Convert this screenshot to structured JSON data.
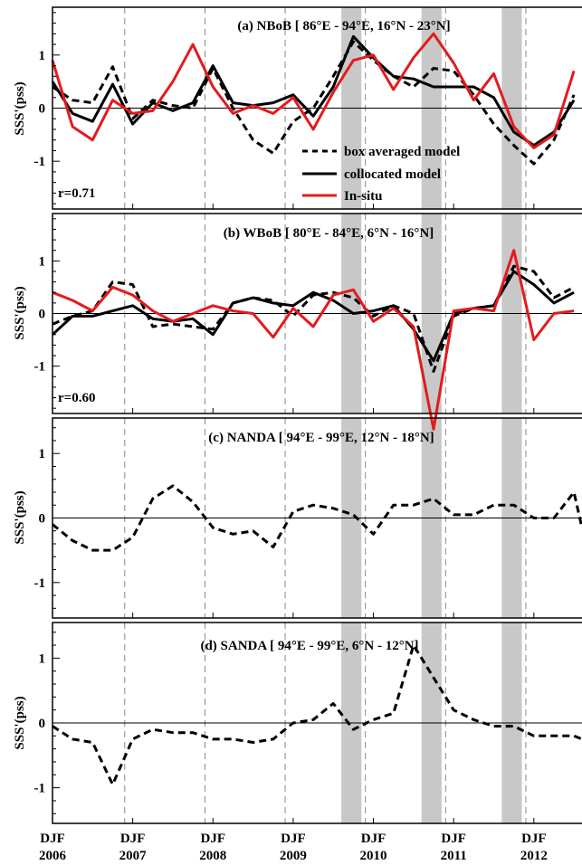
{
  "chart_data": [
    {
      "type": "line",
      "title": "(a) NBoB [ 86°E - 94°E, 16°N - 23°N]",
      "ylabel": "SSS'(pss)",
      "ylim": [
        -1.9,
        1.9
      ],
      "yticks": [
        1,
        0,
        -1
      ],
      "ytick_labels": [
        "1",
        "0",
        "-1"
      ],
      "correlation_label": "r=0.71",
      "legend": [
        "box averaged model",
        "collocated model",
        "In-situ"
      ],
      "legend_position": "center-right",
      "series": [
        {
          "name": "box averaged model",
          "style": "dashed",
          "color": "#000000",
          "x": [
            2006.0,
            2006.25,
            2006.5,
            2006.75,
            2007.0,
            2007.25,
            2007.5,
            2007.75,
            2008.0,
            2008.25,
            2008.5,
            2008.75,
            2009.0,
            2009.25,
            2009.5,
            2009.75,
            2010.0,
            2010.25,
            2010.5,
            2010.75,
            2011.0,
            2011.25,
            2011.5,
            2011.75,
            2012.0,
            2012.25,
            2012.5
          ],
          "y": [
            0.4,
            0.15,
            0.1,
            0.78,
            -0.2,
            0.15,
            0.05,
            0.0,
            0.75,
            0.0,
            -0.6,
            -0.85,
            -0.25,
            0.0,
            0.6,
            1.25,
            0.9,
            0.6,
            0.4,
            0.75,
            0.7,
            0.25,
            -0.3,
            -0.7,
            -1.05,
            -0.6,
            0.25
          ]
        },
        {
          "name": "collocated model",
          "style": "solid",
          "color": "#000000",
          "x": [
            2006.0,
            2006.25,
            2006.5,
            2006.75,
            2007.0,
            2007.25,
            2007.5,
            2007.75,
            2008.0,
            2008.25,
            2008.5,
            2008.75,
            2009.0,
            2009.25,
            2009.5,
            2009.75,
            2010.0,
            2010.25,
            2010.5,
            2010.75,
            2011.0,
            2011.25,
            2011.5,
            2011.75,
            2012.0,
            2012.25,
            2012.5
          ],
          "y": [
            0.5,
            -0.1,
            -0.25,
            0.45,
            -0.3,
            0.1,
            -0.05,
            0.1,
            0.8,
            0.1,
            0.05,
            0.1,
            0.25,
            -0.15,
            0.4,
            1.35,
            0.95,
            0.6,
            0.55,
            0.4,
            0.4,
            0.4,
            0.2,
            -0.45,
            -0.7,
            -0.45,
            0.15
          ]
        },
        {
          "name": "In-situ",
          "style": "solid",
          "color": "#e41a1c",
          "x": [
            2006.0,
            2006.25,
            2006.5,
            2006.75,
            2007.0,
            2007.25,
            2007.5,
            2007.75,
            2008.0,
            2008.25,
            2008.5,
            2008.75,
            2009.0,
            2009.25,
            2009.5,
            2009.75,
            2010.0,
            2010.25,
            2010.5,
            2010.75,
            2011.0,
            2011.25,
            2011.5,
            2011.75,
            2012.0,
            2012.25,
            2012.5
          ],
          "y": [
            0.9,
            -0.35,
            -0.6,
            0.15,
            -0.1,
            -0.05,
            0.5,
            1.2,
            0.4,
            -0.1,
            0.05,
            -0.1,
            0.2,
            -0.4,
            0.3,
            0.9,
            1.0,
            0.35,
            0.95,
            1.4,
            0.85,
            0.15,
            0.65,
            -0.35,
            -0.75,
            -0.5,
            0.7
          ]
        }
      ]
    },
    {
      "type": "line",
      "title": "(b) WBoB [ 80°E - 84°E, 6°N - 16°N]",
      "ylabel": "SSS'(pss)",
      "ylim": [
        -1.9,
        1.9
      ],
      "yticks": [
        1,
        0,
        -1
      ],
      "ytick_labels": [
        "1",
        "0",
        "-1"
      ],
      "correlation_label": "r=0.60",
      "series": [
        {
          "name": "box averaged model",
          "style": "dashed",
          "color": "#000000",
          "x": [
            2006.0,
            2006.25,
            2006.5,
            2006.75,
            2007.0,
            2007.25,
            2007.5,
            2007.75,
            2008.0,
            2008.25,
            2008.5,
            2008.75,
            2009.0,
            2009.25,
            2009.5,
            2009.75,
            2010.0,
            2010.25,
            2010.5,
            2010.75,
            2011.0,
            2011.25,
            2011.5,
            2011.75,
            2012.0,
            2012.25,
            2012.5
          ],
          "y": [
            -0.2,
            -0.05,
            0.05,
            0.6,
            0.55,
            -0.25,
            -0.2,
            -0.25,
            -0.3,
            0.2,
            0.3,
            0.25,
            -0.05,
            0.35,
            0.4,
            0.3,
            -0.05,
            0.15,
            0.0,
            -1.1,
            -0.05,
            0.1,
            0.15,
            0.9,
            0.8,
            0.3,
            0.5
          ]
        },
        {
          "name": "collocated model",
          "style": "solid",
          "color": "#000000",
          "x": [
            2006.0,
            2006.25,
            2006.5,
            2006.75,
            2007.0,
            2007.25,
            2007.5,
            2007.75,
            2008.0,
            2008.25,
            2008.5,
            2008.75,
            2009.0,
            2009.25,
            2009.5,
            2009.75,
            2010.0,
            2010.25,
            2010.5,
            2010.75,
            2011.0,
            2011.25,
            2011.5,
            2011.75,
            2012.0,
            2012.25,
            2012.5
          ],
          "y": [
            -0.4,
            -0.05,
            -0.05,
            0.05,
            0.15,
            -0.1,
            -0.15,
            -0.1,
            -0.4,
            0.2,
            0.3,
            0.2,
            0.15,
            0.4,
            0.25,
            0.0,
            0.05,
            0.15,
            -0.3,
            -0.9,
            0.0,
            0.1,
            0.15,
            0.8,
            0.55,
            0.2,
            0.4
          ]
        },
        {
          "name": "In-situ",
          "style": "solid",
          "color": "#e41a1c",
          "x": [
            2006.0,
            2006.25,
            2006.5,
            2006.75,
            2007.0,
            2007.25,
            2007.5,
            2007.75,
            2008.0,
            2008.25,
            2008.5,
            2008.75,
            2009.0,
            2009.25,
            2009.5,
            2009.75,
            2010.0,
            2010.25,
            2010.5,
            2010.75,
            2011.0,
            2011.25,
            2011.5,
            2011.75,
            2012.0,
            2012.25,
            2012.5
          ],
          "y": [
            0.4,
            0.25,
            0.05,
            0.5,
            0.35,
            0.05,
            -0.15,
            0.0,
            0.15,
            0.05,
            0.0,
            -0.45,
            0.1,
            -0.25,
            0.35,
            0.45,
            -0.15,
            0.1,
            -0.25,
            -2.2,
            0.05,
            0.1,
            0.05,
            1.2,
            -0.5,
            0.0,
            0.05
          ]
        }
      ]
    },
    {
      "type": "line",
      "title": "(c) NANDA [ 94°E - 99°E, 12°N - 18°N]",
      "ylabel": "SSS'(pss)",
      "ylim": [
        -1.55,
        1.55
      ],
      "yticks": [
        1,
        0,
        -1
      ],
      "ytick_labels": [
        "1",
        "0",
        "-1"
      ],
      "series": [
        {
          "name": "box averaged model",
          "style": "dashed",
          "color": "#000000",
          "x": [
            2006.0,
            2006.25,
            2006.5,
            2006.75,
            2007.0,
            2007.25,
            2007.5,
            2007.75,
            2008.0,
            2008.25,
            2008.5,
            2008.75,
            2009.0,
            2009.25,
            2009.5,
            2009.75,
            2010.0,
            2010.25,
            2010.5,
            2010.75,
            2011.0,
            2011.25,
            2011.5,
            2011.75,
            2012.0,
            2012.25,
            2012.5,
            2012.6
          ],
          "y": [
            -0.1,
            -0.35,
            -0.5,
            -0.5,
            -0.3,
            0.3,
            0.5,
            0.25,
            -0.15,
            -0.25,
            -0.2,
            -0.45,
            0.1,
            0.2,
            0.15,
            0.05,
            -0.25,
            0.2,
            0.2,
            0.3,
            0.05,
            0.05,
            0.2,
            0.2,
            0.0,
            0.0,
            0.4,
            -0.15
          ]
        }
      ]
    },
    {
      "type": "line",
      "title": "(d) SANDA [ 94°E - 99°E, 6°N - 12°N]",
      "ylabel": "SSS'(pss)",
      "ylim": [
        -1.55,
        1.55
      ],
      "yticks": [
        1,
        0,
        -1
      ],
      "ytick_labels": [
        "1",
        "0",
        "-1"
      ],
      "x_tick_labels": [
        "DJF 2006",
        "DJF 2007",
        "DJF 2008",
        "DJF 2009",
        "DJF 2010",
        "DJF 2011",
        "DJF 2012"
      ],
      "xlim": [
        2006.0,
        2012.6
      ],
      "series": [
        {
          "name": "box averaged model",
          "style": "dashed",
          "color": "#000000",
          "x": [
            2006.0,
            2006.25,
            2006.5,
            2006.75,
            2007.0,
            2007.25,
            2007.5,
            2007.75,
            2008.0,
            2008.25,
            2008.5,
            2008.75,
            2009.0,
            2009.25,
            2009.5,
            2009.75,
            2010.0,
            2010.25,
            2010.5,
            2010.75,
            2011.0,
            2011.25,
            2011.5,
            2011.75,
            2012.0,
            2012.25,
            2012.5,
            2012.6
          ],
          "y": [
            -0.05,
            -0.25,
            -0.3,
            -0.95,
            -0.25,
            -0.1,
            -0.15,
            -0.15,
            -0.25,
            -0.25,
            -0.3,
            -0.25,
            0.0,
            0.05,
            0.3,
            -0.1,
            0.05,
            0.15,
            1.2,
            0.7,
            0.2,
            0.05,
            -0.05,
            -0.05,
            -0.2,
            -0.2,
            -0.2,
            -0.25
          ]
        }
      ]
    }
  ],
  "shared": {
    "x_tick_top": [
      "DJF",
      "DJF",
      "DJF",
      "DJF",
      "DJF",
      "DJF",
      "DJF"
    ],
    "x_tick_bottom": [
      "2006",
      "2007",
      "2008",
      "2009",
      "2010",
      "2011",
      "2012"
    ],
    "x_tick_values": [
      2006.0,
      2007.0,
      2008.0,
      2009.0,
      2010.0,
      2011.0,
      2012.0
    ],
    "dashed_vlines": [
      2006.9,
      2007.9,
      2008.9,
      2009.9,
      2010.9,
      2011.9
    ],
    "shaded_bands": [
      [
        2009.6,
        2009.85
      ],
      [
        2010.6,
        2010.85
      ],
      [
        2011.6,
        2011.85
      ]
    ],
    "colors": {
      "insitu": "#e41a1c",
      "model": "#000000",
      "band": "#c8c8c8"
    }
  }
}
